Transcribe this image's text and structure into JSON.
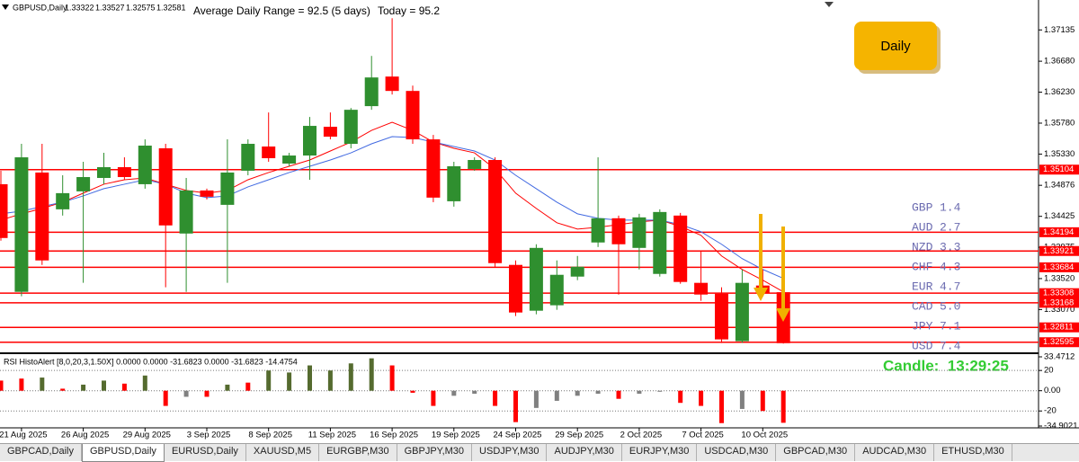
{
  "header": {
    "symbol": "GBPUSD,Daily",
    "adr": "Average Daily Range = 92.5 (5 days)",
    "today": "Today = 95.2"
  },
  "button": "Daily",
  "currency_strength": [
    [
      "GBP",
      "1.4"
    ],
    [
      "AUD",
      "2.7"
    ],
    [
      "NZD",
      "3.3"
    ],
    [
      "CHF",
      "4.3"
    ],
    [
      "EUR",
      "4.7"
    ],
    [
      "CAD",
      "5.0"
    ],
    [
      "JPY",
      "7.1"
    ],
    [
      "USD",
      "7.4"
    ]
  ],
  "timer": "Candle:  13:29:25",
  "tabs": [
    "GBPCAD,Daily",
    "GBPUSD,Daily",
    "EURUSD,Daily",
    "XAUUSD,M5",
    "EURGBP,M30",
    "GBPJPY,M30",
    "USDJPY,M30",
    "AUDJPY,M30",
    "EURJPY,M30",
    "USDCAD,M30",
    "GBPCAD,M30",
    "AUDCAD,M30",
    "ETHUSD,M30"
  ],
  "active_tab": 1,
  "chart_data": [
    {
      "type": "candlestick",
      "categories": [
        null,
        "21 Aug 2025",
        null,
        null,
        "26 Aug 2025",
        null,
        null,
        "29 Aug 2025",
        null,
        null,
        "3 Sep 2025",
        null,
        null,
        "8 Sep 2025",
        null,
        null,
        "11 Sep 2025",
        null,
        null,
        "16 Sep 2025",
        null,
        null,
        "19 Sep 2025",
        null,
        null,
        "24 Sep 2025",
        null,
        null,
        "29 Sep 2025",
        null,
        null,
        "2 Oct 2025",
        null,
        null,
        "7 Oct 2025",
        null,
        null,
        "10 Oct 2025",
        null
      ],
      "open": [
        1.34892,
        1.33327,
        1.35062,
        1.34527,
        1.34788,
        1.34983,
        1.3514,
        1.34892,
        1.35414,
        1.34175,
        1.34801,
        1.34592,
        1.35088,
        1.3544,
        1.35192,
        1.35309,
        1.35727,
        1.35479,
        1.36027,
        1.36457,
        1.36248,
        1.35544,
        1.34644,
        1.35114,
        1.35244,
        1.33719,
        1.33053,
        1.33132,
        1.33549,
        1.34045,
        1.34397,
        1.33966,
        1.33588,
        1.34436,
        1.33458,
        1.33301,
        1.3261,
        1.33419,
        1.33322
      ],
      "high": [
        1.35088,
        1.35479,
        1.35479,
        1.35022,
        1.35218,
        1.35348,
        1.35283,
        1.35544,
        1.35479,
        1.34983,
        1.34827,
        1.35544,
        1.35544,
        1.35935,
        1.35348,
        1.3587,
        1.35935,
        1.36,
        1.36757,
        1.37305,
        1.36326,
        1.35609,
        1.35218,
        1.35283,
        1.35283,
        1.33784,
        1.34019,
        1.33784,
        1.33849,
        1.35283,
        1.34436,
        1.34462,
        1.34527,
        1.34475,
        1.33914,
        1.33393,
        1.33653,
        1.33653,
        1.33527
      ],
      "low": [
        1.34071,
        1.33262,
        1.33719,
        1.34436,
        1.33458,
        1.34892,
        1.34957,
        1.34827,
        1.33393,
        1.33327,
        1.3467,
        1.33458,
        1.35022,
        1.35218,
        1.35153,
        1.34957,
        1.35544,
        1.35414,
        1.35974,
        1.36196,
        1.35479,
        1.34631,
        1.34566,
        1.35088,
        1.33679,
        1.32975,
        1.33001,
        1.33066,
        1.33497,
        1.33979,
        1.33288,
        1.33653,
        1.33549,
        1.33445,
        1.33197,
        1.32584,
        1.32584,
        1.33262,
        1.32575
      ],
      "close": [
        1.3411,
        1.35283,
        1.33784,
        1.34762,
        1.34996,
        1.3514,
        1.34996,
        1.35453,
        1.34293,
        1.34801,
        1.3471,
        1.35062,
        1.35479,
        1.3527,
        1.35309,
        1.3574,
        1.35583,
        1.35974,
        1.36444,
        1.36248,
        1.35544,
        1.34697,
        1.35153,
        1.35244,
        1.33745,
        1.33027,
        1.33966,
        1.33575,
        1.33692,
        1.34397,
        1.34019,
        1.3441,
        1.34488,
        1.33471,
        1.33288,
        1.32636,
        1.33458,
        1.33314,
        1.32581
      ],
      "up_color": "#2f8f2f",
      "down_color": "#ff0000",
      "ma": [
        {
          "color": "#ff0000",
          "values": [
            1.34371,
            1.34462,
            1.3454,
            1.34631,
            1.34762,
            1.34892,
            1.34957,
            1.34983,
            1.34892,
            1.34801,
            1.34762,
            1.34801,
            1.34957,
            1.35062,
            1.35153,
            1.35244,
            1.35375,
            1.35505,
            1.35675,
            1.35792,
            1.35675,
            1.35505,
            1.35414,
            1.35348,
            1.35114,
            1.34762,
            1.3454,
            1.34332,
            1.3424,
            1.34266,
            1.34305,
            1.34344,
            1.34371,
            1.34279,
            1.34149,
            1.33849,
            1.33653,
            1.33497,
            1.33327
          ]
        },
        {
          "color": "#4169e1",
          "values": [
            1.34462,
            1.34501,
            1.34566,
            1.34631,
            1.34722,
            1.34827,
            1.34892,
            1.34957,
            1.34892,
            1.34762,
            1.34697,
            1.34722,
            1.34853,
            1.34957,
            1.35062,
            1.35153,
            1.35244,
            1.35348,
            1.35479,
            1.35583,
            1.3557,
            1.35505,
            1.3544,
            1.35375,
            1.35244,
            1.35022,
            1.34827,
            1.34631,
            1.34462,
            1.34397,
            1.34371,
            1.34371,
            1.34371,
            1.34305,
            1.34201,
            1.34019,
            1.3381,
            1.33653,
            1.33523
          ]
        }
      ],
      "levels": {
        "color": "#ff0000",
        "values": [
          1.35104,
          1.34194,
          1.33921,
          1.33684,
          1.33308,
          1.33168,
          1.32811,
          1.32595
        ]
      },
      "ylim": [
        1.325,
        1.3757
      ],
      "yticks": [
        1.37135,
        {
          "value": 1.3668,
          "label": "1.36680"
        },
        {
          "value": 1.3623,
          "label": "1.36230"
        },
        {
          "value": 1.3578,
          "label": "1.35780"
        },
        {
          "value": 1.3533,
          "label": "1.35330"
        },
        1.34876,
        1.34425,
        1.33975,
        {
          "value": 1.3352,
          "label": "1.33520"
        },
        {
          "value": 1.3307,
          "label": "1.33070"
        }
      ]
    },
    {
      "type": "bar",
      "title": "RSI HistoAlert [8,0,20,3,1.50X] 0.0000 0.0000 -31.6823 0.0000 -31.6823 -14.4754",
      "values": [
        10,
        12,
        13,
        2,
        6,
        10,
        7,
        15,
        -15,
        -6,
        -6,
        6,
        8,
        20,
        18,
        25,
        20,
        27,
        32,
        25,
        -2,
        -15,
        -5,
        -3,
        -15,
        -31,
        -17,
        -10,
        -5,
        -3,
        -8,
        -3,
        -1,
        -12,
        -15,
        -32,
        -18,
        -20,
        -31.6823
      ],
      "colors": [
        "#ff0000",
        "#ff0000",
        "#556b2f",
        "#ff0000",
        "#556b2f",
        "#556b2f",
        "#ff0000",
        "#556b2f",
        "#ff0000",
        "#808080",
        "#ff0000",
        "#556b2f",
        "#ff0000",
        "#556b2f",
        "#556b2f",
        "#556b2f",
        "#556b2f",
        "#556b2f",
        "#556b2f",
        "#ff0000",
        "#ff0000",
        "#ff0000",
        "#808080",
        "#808080",
        "#ff0000",
        "#ff0000",
        "#808080",
        "#808080",
        "#808080",
        "#808080",
        "#ff0000",
        "#808080",
        "#808080",
        "#ff0000",
        "#ff0000",
        "#ff0000",
        "#808080",
        "#ff0000",
        "#ff0000"
      ],
      "ylim": [
        -34.9021,
        33.4712
      ],
      "yticks": [
        33.4712,
        20,
        {
          "value": 0,
          "label": "0.00"
        },
        -20,
        -34.9021
      ]
    }
  ]
}
